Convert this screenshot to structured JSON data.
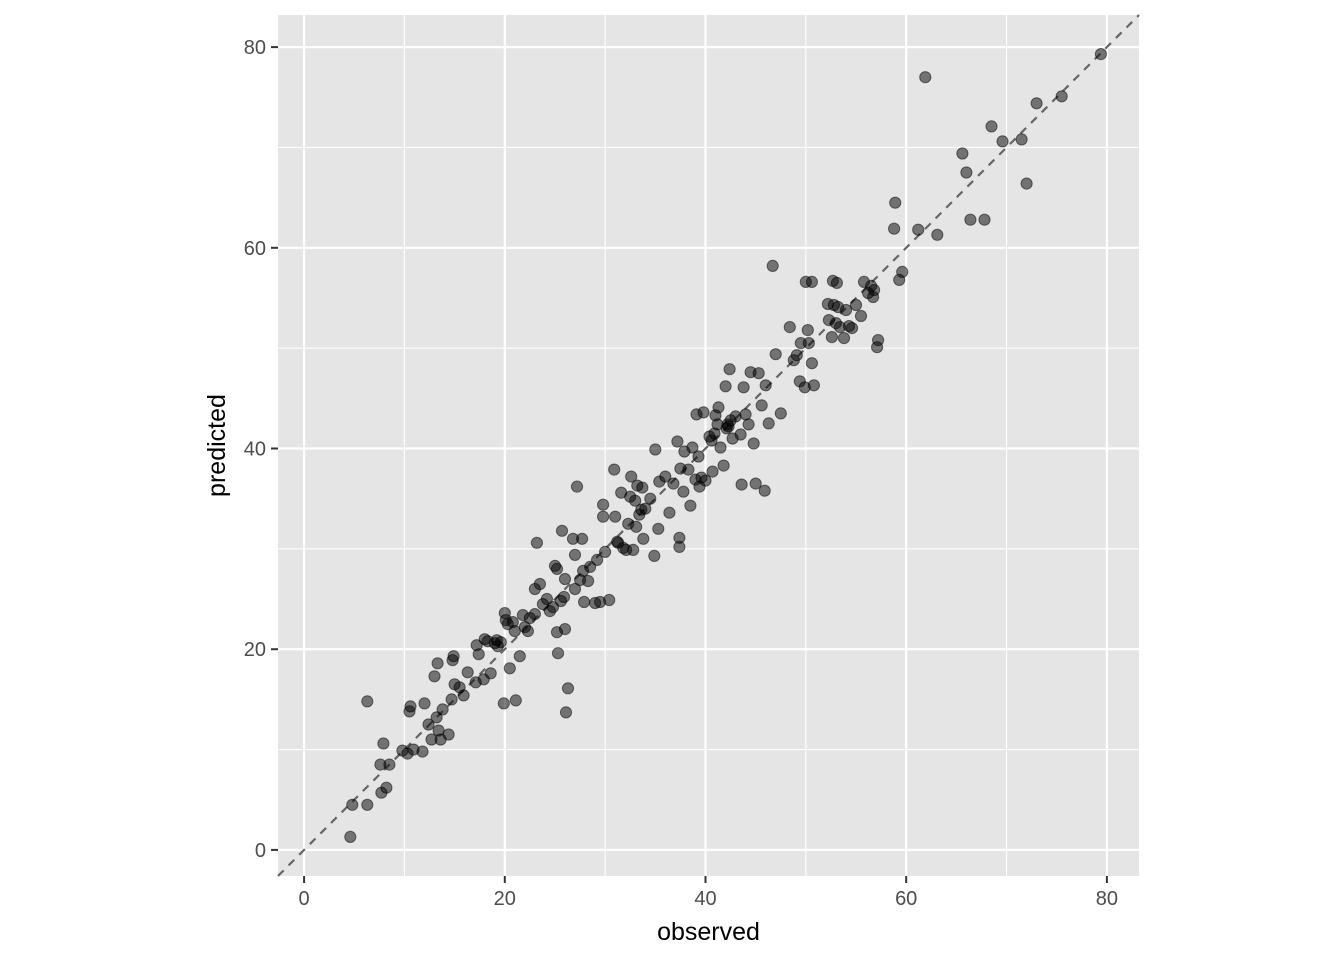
{
  "chart_data": {
    "type": "scatter",
    "xlabel": "observed",
    "ylabel": "predicted",
    "xlim": [
      -2.6,
      83.2
    ],
    "ylim": [
      -2.6,
      83.2
    ],
    "x_ticks": [
      0,
      20,
      40,
      60,
      80
    ],
    "y_ticks": [
      0,
      20,
      40,
      60,
      80
    ],
    "x_tick_labels": [
      "0",
      "20",
      "40",
      "60",
      "80"
    ],
    "y_tick_labels": [
      "0",
      "20",
      "40",
      "60",
      "80"
    ],
    "grid": true,
    "reference_line": {
      "slope": 1,
      "intercept": 0,
      "style": "dashed",
      "color": "#666666"
    },
    "colors": {
      "panel": "#e5e5e5",
      "grid": "#ffffff",
      "point": "#000000",
      "point_opacity": 0.5
    },
    "points": [
      [
        4.6,
        1.3
      ],
      [
        4.8,
        4.5
      ],
      [
        6.3,
        4.5
      ],
      [
        6.3,
        14.8
      ],
      [
        7.6,
        8.5
      ],
      [
        7.7,
        5.7
      ],
      [
        7.9,
        10.6
      ],
      [
        8.2,
        6.2
      ],
      [
        8.5,
        8.5
      ],
      [
        9.8,
        9.9
      ],
      [
        10.3,
        9.6
      ],
      [
        10.5,
        13.8
      ],
      [
        10.6,
        14.3
      ],
      [
        10.9,
        10.0
      ],
      [
        11.8,
        9.8
      ],
      [
        12.0,
        14.6
      ],
      [
        12.4,
        12.5
      ],
      [
        12.7,
        11.0
      ],
      [
        13.0,
        17.3
      ],
      [
        13.2,
        13.2
      ],
      [
        13.3,
        18.6
      ],
      [
        13.4,
        11.9
      ],
      [
        13.6,
        11.0
      ],
      [
        13.8,
        14.0
      ],
      [
        14.4,
        11.5
      ],
      [
        14.7,
        15.0
      ],
      [
        14.8,
        18.9
      ],
      [
        14.9,
        19.3
      ],
      [
        15.0,
        16.5
      ],
      [
        15.5,
        16.2
      ],
      [
        15.9,
        15.4
      ],
      [
        16.3,
        17.7
      ],
      [
        17.1,
        16.7
      ],
      [
        17.2,
        20.4
      ],
      [
        17.4,
        19.5
      ],
      [
        17.9,
        17.0
      ],
      [
        18.0,
        21.0
      ],
      [
        18.3,
        20.8
      ],
      [
        18.6,
        17.6
      ],
      [
        19.0,
        20.6
      ],
      [
        19.2,
        20.9
      ],
      [
        19.3,
        20.3
      ],
      [
        19.6,
        20.7
      ],
      [
        19.9,
        14.6
      ],
      [
        20.0,
        23.6
      ],
      [
        20.1,
        22.9
      ],
      [
        20.3,
        22.5
      ],
      [
        20.5,
        18.1
      ],
      [
        20.8,
        22.7
      ],
      [
        21.0,
        21.8
      ],
      [
        21.1,
        14.9
      ],
      [
        21.5,
        19.3
      ],
      [
        21.8,
        23.4
      ],
      [
        22.0,
        22.2
      ],
      [
        22.3,
        21.8
      ],
      [
        22.5,
        23.1
      ],
      [
        23.0,
        23.5
      ],
      [
        23.0,
        26.0
      ],
      [
        23.2,
        30.6
      ],
      [
        23.5,
        26.5
      ],
      [
        23.8,
        24.5
      ],
      [
        24.2,
        25.0
      ],
      [
        24.5,
        23.8
      ],
      [
        24.8,
        24.2
      ],
      [
        25.0,
        28.3
      ],
      [
        25.2,
        28.0
      ],
      [
        25.2,
        21.7
      ],
      [
        25.3,
        19.6
      ],
      [
        25.6,
        24.8
      ],
      [
        25.7,
        31.8
      ],
      [
        25.9,
        25.2
      ],
      [
        26.0,
        22.0
      ],
      [
        26.0,
        27.0
      ],
      [
        26.1,
        13.7
      ],
      [
        26.3,
        16.1
      ],
      [
        26.8,
        31.0
      ],
      [
        27.0,
        29.4
      ],
      [
        27.0,
        26.0
      ],
      [
        27.2,
        36.2
      ],
      [
        27.5,
        26.9
      ],
      [
        27.7,
        31.0
      ],
      [
        27.8,
        27.8
      ],
      [
        27.9,
        24.7
      ],
      [
        28.3,
        26.8
      ],
      [
        28.5,
        28.2
      ],
      [
        29.0,
        24.6
      ],
      [
        29.2,
        28.9
      ],
      [
        29.5,
        24.7
      ],
      [
        29.8,
        33.2
      ],
      [
        29.8,
        34.4
      ],
      [
        30.0,
        29.7
      ],
      [
        30.4,
        24.9
      ],
      [
        30.9,
        37.9
      ],
      [
        31.0,
        33.2
      ],
      [
        31.2,
        30.7
      ],
      [
        31.3,
        30.6
      ],
      [
        31.6,
        35.6
      ],
      [
        31.8,
        30.1
      ],
      [
        32.1,
        29.9
      ],
      [
        32.3,
        32.5
      ],
      [
        32.5,
        35.2
      ],
      [
        32.6,
        37.2
      ],
      [
        32.8,
        29.9
      ],
      [
        33.0,
        34.8
      ],
      [
        33.1,
        32.2
      ],
      [
        33.2,
        36.3
      ],
      [
        33.4,
        33.4
      ],
      [
        33.6,
        33.9
      ],
      [
        33.7,
        36.1
      ],
      [
        33.8,
        31.0
      ],
      [
        34.0,
        34.0
      ],
      [
        34.5,
        35.0
      ],
      [
        34.9,
        29.3
      ],
      [
        35.0,
        39.9
      ],
      [
        35.3,
        32.0
      ],
      [
        35.4,
        36.7
      ],
      [
        36.0,
        37.2
      ],
      [
        36.4,
        33.6
      ],
      [
        36.8,
        36.5
      ],
      [
        37.2,
        40.7
      ],
      [
        37.4,
        30.2
      ],
      [
        37.4,
        31.1
      ],
      [
        37.5,
        38.0
      ],
      [
        37.8,
        35.7
      ],
      [
        37.9,
        39.7
      ],
      [
        38.3,
        37.9
      ],
      [
        38.5,
        34.3
      ],
      [
        38.7,
        40.1
      ],
      [
        39.0,
        36.9
      ],
      [
        39.1,
        43.4
      ],
      [
        39.3,
        39.2
      ],
      [
        39.4,
        36.2
      ],
      [
        39.6,
        37.1
      ],
      [
        39.8,
        43.6
      ],
      [
        40.0,
        36.8
      ],
      [
        40.4,
        41.2
      ],
      [
        40.6,
        40.8
      ],
      [
        40.7,
        37.7
      ],
      [
        40.9,
        41.5
      ],
      [
        41.0,
        43.3
      ],
      [
        41.2,
        42.4
      ],
      [
        41.3,
        44.1
      ],
      [
        41.5,
        40.1
      ],
      [
        41.8,
        38.3
      ],
      [
        42.0,
        46.2
      ],
      [
        42.1,
        42.0
      ],
      [
        42.2,
        42.4
      ],
      [
        42.3,
        42.2
      ],
      [
        42.4,
        47.9
      ],
      [
        42.5,
        42.8
      ],
      [
        42.7,
        41.0
      ],
      [
        43.0,
        43.2
      ],
      [
        43.5,
        41.4
      ],
      [
        43.6,
        36.4
      ],
      [
        43.8,
        46.1
      ],
      [
        44.0,
        43.4
      ],
      [
        44.3,
        42.4
      ],
      [
        44.5,
        47.6
      ],
      [
        44.8,
        40.5
      ],
      [
        45.0,
        36.5
      ],
      [
        45.3,
        47.5
      ],
      [
        45.6,
        44.3
      ],
      [
        45.9,
        35.8
      ],
      [
        46.0,
        46.3
      ],
      [
        46.3,
        42.5
      ],
      [
        46.7,
        58.2
      ],
      [
        47.0,
        49.4
      ],
      [
        47.5,
        43.5
      ],
      [
        48.4,
        52.1
      ],
      [
        48.8,
        48.8
      ],
      [
        49.1,
        49.3
      ],
      [
        49.4,
        46.7
      ],
      [
        49.5,
        50.5
      ],
      [
        49.9,
        46.1
      ],
      [
        50.0,
        56.6
      ],
      [
        50.2,
        51.8
      ],
      [
        50.3,
        50.5
      ],
      [
        50.6,
        48.5
      ],
      [
        50.6,
        56.6
      ],
      [
        50.8,
        46.3
      ],
      [
        52.2,
        54.4
      ],
      [
        52.3,
        52.8
      ],
      [
        52.6,
        51.1
      ],
      [
        52.7,
        56.7
      ],
      [
        52.8,
        54.3
      ],
      [
        53.0,
        52.5
      ],
      [
        53.1,
        56.5
      ],
      [
        53.2,
        54.1
      ],
      [
        53.4,
        52.1
      ],
      [
        53.8,
        51.0
      ],
      [
        54.0,
        53.8
      ],
      [
        54.3,
        52.2
      ],
      [
        54.6,
        52.0
      ],
      [
        55.0,
        54.3
      ],
      [
        55.5,
        53.2
      ],
      [
        55.8,
        56.6
      ],
      [
        56.2,
        55.5
      ],
      [
        56.5,
        56.2
      ],
      [
        56.7,
        55.1
      ],
      [
        56.8,
        55.8
      ],
      [
        57.1,
        50.1
      ],
      [
        57.2,
        50.8
      ],
      [
        58.8,
        61.9
      ],
      [
        58.9,
        64.5
      ],
      [
        59.3,
        56.8
      ],
      [
        59.6,
        57.6
      ],
      [
        61.2,
        61.8
      ],
      [
        61.9,
        77.0
      ],
      [
        63.1,
        61.3
      ],
      [
        65.6,
        69.4
      ],
      [
        66.0,
        67.5
      ],
      [
        66.4,
        62.8
      ],
      [
        67.8,
        62.8
      ],
      [
        68.5,
        72.1
      ],
      [
        69.6,
        70.6
      ],
      [
        71.5,
        70.8
      ],
      [
        72.0,
        66.4
      ],
      [
        73.0,
        74.4
      ],
      [
        75.5,
        75.1
      ],
      [
        79.4,
        79.3
      ]
    ]
  }
}
